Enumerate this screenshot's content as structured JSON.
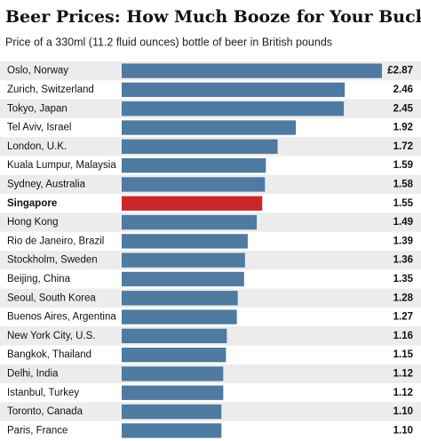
{
  "chart_data": {
    "type": "hbar",
    "title": "Beer Prices: How Much Booze for Your Buck?",
    "subtitle": "Price of a 330ml (11.2 fluid ounces) bottle of beer in British pounds",
    "categories": [
      "Oslo, Norway",
      "Zurich, Switzerland",
      "Tokyo, Japan",
      "Tel Aviv, Israel",
      "London, U.K.",
      "Kuala Lumpur, Malaysia",
      "Sydney, Australia",
      "Singapore",
      "Hong Kong",
      "Rio de Janeiro, Brazil",
      "Stockholm, Sweden",
      "Beijing, China",
      "Seoul, South Korea",
      "Buenos Aires, Argentina",
      "New York City, U.S.",
      "Bangkok, Thailand",
      "Delhi, India",
      "Istanbul, Turkey",
      "Toronto, Canada",
      "Paris, France"
    ],
    "values": [
      2.87,
      2.46,
      2.45,
      1.92,
      1.72,
      1.59,
      1.58,
      1.55,
      1.49,
      1.39,
      1.36,
      1.35,
      1.28,
      1.27,
      1.16,
      1.15,
      1.12,
      1.12,
      1.1,
      1.1
    ],
    "value_labels": [
      "£2.87",
      "2.46",
      "2.45",
      "1.92",
      "1.72",
      "1.59",
      "1.58",
      "1.55",
      "1.49",
      "1.39",
      "1.36",
      "1.35",
      "1.28",
      "1.27",
      "1.16",
      "1.15",
      "1.12",
      "1.12",
      "1.10",
      "1.10"
    ],
    "colors": [
      "#4f7aa1",
      "#4f7aa1",
      "#4f7aa1",
      "#4f7aa1",
      "#4f7aa1",
      "#4f7aa1",
      "#4f7aa1",
      "#c9282b",
      "#4f7aa1",
      "#4f7aa1",
      "#4f7aa1",
      "#4f7aa1",
      "#4f7aa1",
      "#4f7aa1",
      "#4f7aa1",
      "#4f7aa1",
      "#4f7aa1",
      "#4f7aa1",
      "#4f7aa1",
      "#4f7aa1"
    ]
  }
}
